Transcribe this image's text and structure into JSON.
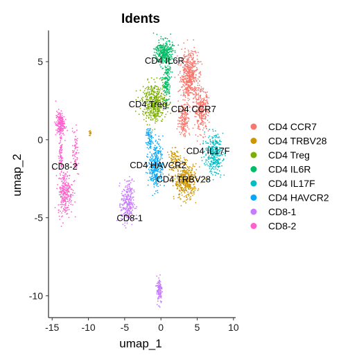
{
  "chart_data": {
    "type": "scatter",
    "title": "Idents",
    "xlabel": "umap_1",
    "ylabel": "umap_2",
    "xlim": [
      -15.5,
      10.3
    ],
    "ylim": [
      -11.4,
      7.0
    ],
    "xticks": [
      -15,
      -10,
      -5,
      0,
      5,
      10
    ],
    "yticks": [
      -10,
      -5,
      0,
      5
    ],
    "grid": false,
    "legend_position": "right",
    "series": [
      {
        "name": "CD4 CCR7",
        "color": "#F8766D",
        "clusters": [
          {
            "cx": 3.9,
            "cy": 4.1,
            "rx": 1.1,
            "ry": 1.4,
            "n": 520
          },
          {
            "cx": 5.6,
            "cy": 1.9,
            "rx": 0.9,
            "ry": 1.2,
            "n": 300
          },
          {
            "cx": 3.2,
            "cy": 1.3,
            "rx": 0.7,
            "ry": 1.0,
            "n": 160
          }
        ]
      },
      {
        "name": "CD4 TRBV28",
        "color": "#CD9600",
        "clusters": [
          {
            "cx": 3.4,
            "cy": -2.7,
            "rx": 1.4,
            "ry": 1.0,
            "n": 420
          },
          {
            "cx": 1.9,
            "cy": -1.3,
            "rx": 0.8,
            "ry": 0.6,
            "n": 90
          },
          {
            "cx": -9.7,
            "cy": 0.4,
            "rx": 0.3,
            "ry": 0.15,
            "n": 14
          }
        ]
      },
      {
        "name": "CD4 Treg",
        "color": "#7CAE00",
        "clusters": [
          {
            "cx": -0.9,
            "cy": 2.4,
            "rx": 1.5,
            "ry": 1.1,
            "n": 460
          }
        ]
      },
      {
        "name": "CD4 IL6R",
        "color": "#00BE67",
        "clusters": [
          {
            "cx": 0.4,
            "cy": 5.6,
            "rx": 1.1,
            "ry": 0.7,
            "n": 300
          },
          {
            "cx": 0.8,
            "cy": 3.7,
            "rx": 0.5,
            "ry": 1.3,
            "n": 160
          }
        ]
      },
      {
        "name": "CD4 IL17F",
        "color": "#00BFC4",
        "clusters": [
          {
            "cx": 7.3,
            "cy": -0.9,
            "rx": 1.1,
            "ry": 1.1,
            "n": 320
          }
        ]
      },
      {
        "name": "CD4 HAVCR2",
        "color": "#00A9FF",
        "clusters": [
          {
            "cx": -0.7,
            "cy": -1.6,
            "rx": 0.9,
            "ry": 1.4,
            "n": 330
          },
          {
            "cx": -1.6,
            "cy": 0.1,
            "rx": 0.4,
            "ry": 0.6,
            "n": 60
          }
        ]
      },
      {
        "name": "CD8-1",
        "color": "#C77CFF",
        "clusters": [
          {
            "cx": -4.6,
            "cy": -4.1,
            "rx": 0.8,
            "ry": 1.3,
            "n": 260
          },
          {
            "cx": -0.2,
            "cy": -9.6,
            "rx": 0.35,
            "ry": 0.8,
            "n": 110
          }
        ]
      },
      {
        "name": "CD8-2",
        "color": "#FF61CC",
        "clusters": [
          {
            "cx": -13.2,
            "cy": -3.4,
            "rx": 0.9,
            "ry": 1.3,
            "n": 260
          },
          {
            "cx": -13.9,
            "cy": 1.0,
            "rx": 0.55,
            "ry": 0.75,
            "n": 190
          },
          {
            "cx": -13.8,
            "cy": -1.0,
            "rx": 0.25,
            "ry": 1.0,
            "n": 70
          },
          {
            "cx": -11.8,
            "cy": -0.9,
            "rx": 0.35,
            "ry": 1.4,
            "n": 70
          }
        ]
      }
    ],
    "annotations": [
      {
        "text": "CD4 IL6R",
        "x": 0.5,
        "y": 5.1
      },
      {
        "text": "CD4 Treg",
        "x": -1.8,
        "y": 2.3
      },
      {
        "text": "CD4 CCR7",
        "x": 4.5,
        "y": 2.0
      },
      {
        "text": "CD4 IL17F",
        "x": 6.5,
        "y": -0.7
      },
      {
        "text": "CD4 HAVCR2",
        "x": -0.4,
        "y": -1.6
      },
      {
        "text": "CD4 TRBV28",
        "x": 3.1,
        "y": -2.5
      },
      {
        "text": "CD8-2",
        "x": -13.3,
        "y": -1.7
      },
      {
        "text": "CD8-1",
        "x": -4.3,
        "y": -5.0
      }
    ]
  }
}
